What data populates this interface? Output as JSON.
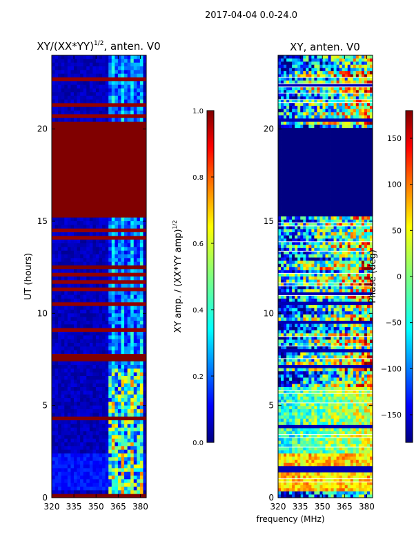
{
  "page": {
    "suptitle": "2017-04-04 0.0-24.0",
    "xlabel": "frequency (MHz)"
  },
  "chart_data": [
    {
      "type": "heatmap",
      "title_main": "XY/(XX*YY)",
      "title_sup": "1/2",
      "title_tail": ", anten. V0",
      "xlabel": "frequency (MHz)",
      "ylabel": "UT (hours)",
      "xlim": [
        320,
        384
      ],
      "ylim": [
        0,
        24
      ],
      "xticks": [
        320,
        335,
        350,
        365,
        380
      ],
      "yticks": [
        0,
        5,
        10,
        15,
        20
      ],
      "colormap": "jet",
      "colorbar": {
        "label_main": "XY amp. / (XX*YY amp)",
        "label_sup": "1/2",
        "range": [
          0.0,
          1.0
        ],
        "ticks": [
          0.0,
          0.2,
          0.4,
          0.6,
          0.8,
          1.0
        ],
        "tick_labels": [
          "0.0",
          "0.2",
          "0.4",
          "0.6",
          "0.8",
          "1.0"
        ]
      },
      "saturated_intervals_hours": [
        [
          15.2,
          20.3
        ],
        [
          7.5,
          7.8
        ],
        [
          4.2,
          4.4
        ],
        [
          12.3,
          12.6
        ],
        [
          0.0,
          0.15
        ]
      ],
      "bright_band_mhz": [
        358,
        382
      ]
    },
    {
      "type": "heatmap",
      "title": "XY, anten. V0",
      "xlim": [
        320,
        384
      ],
      "ylim": [
        0,
        24
      ],
      "xticks": [
        320,
        335,
        350,
        365,
        380
      ],
      "yticks": [
        0,
        5,
        10,
        15,
        20
      ],
      "colormap": "jet",
      "colorbar": {
        "label": "Phase (deg)",
        "range": [
          -180,
          180
        ],
        "ticks": [
          150,
          100,
          50,
          0,
          -50,
          -100,
          -150
        ],
        "tick_labels": [
          "150",
          "100",
          "50",
          "0",
          "−50",
          "−100",
          "−150"
        ]
      },
      "flat_interval_hours": [
        15.3,
        20.0
      ]
    }
  ],
  "colors": {
    "jet": [
      "#00007f",
      "#0000ff",
      "#007fff",
      "#00ffff",
      "#7fff7f",
      "#ffff00",
      "#ff7f00",
      "#ff0000",
      "#7f0000"
    ]
  }
}
